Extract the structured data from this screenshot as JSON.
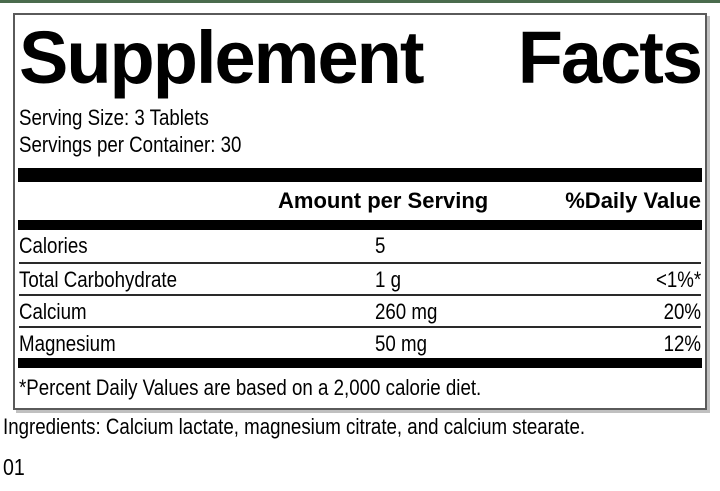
{
  "colors": {
    "strip_green": "#4a6b4d",
    "panel_border": "#5a5a5a",
    "panel_shadow": "#c0c0c0",
    "bar_black": "#000000",
    "rule_gray": "#2a2a2a"
  },
  "label": {
    "title_word1": "Supplement",
    "title_word2": "Facts",
    "serving_size": "Serving Size: 3 Tablets",
    "servings_per_container": "Servings per Container: 30",
    "columns": {
      "amount": "Amount per Serving",
      "daily_value": "%Daily Value"
    },
    "rows": [
      {
        "nutrient": "Calories",
        "amount": "5",
        "dv": ""
      },
      {
        "nutrient": "Total Carbohydrate",
        "amount": "1 g",
        "dv": "<1%*"
      },
      {
        "nutrient": "Calcium",
        "amount": "260 mg",
        "dv": "20%"
      },
      {
        "nutrient": "Magnesium",
        "amount": "50 mg",
        "dv": "12%"
      }
    ],
    "footnote": "*Percent Daily Values are based on a 2,000 calorie diet."
  },
  "ingredients": "Ingredients: Calcium lactate, magnesium citrate, and calcium stearate.",
  "product_code": "01"
}
